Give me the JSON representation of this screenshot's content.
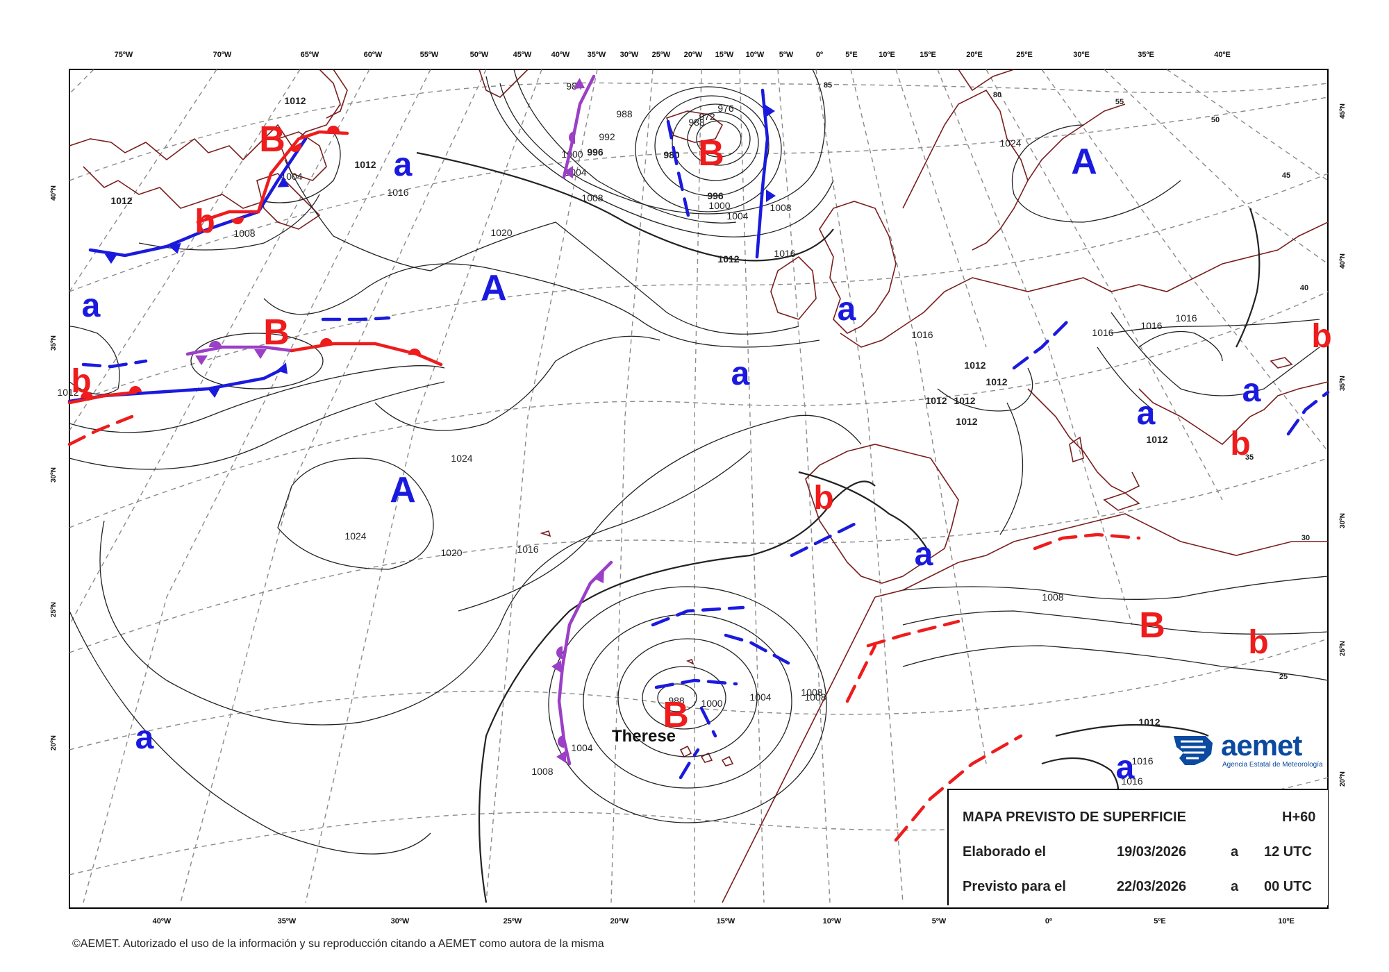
{
  "map": {
    "top_lon_labels": [
      "75ºW",
      "70ºW",
      "65ºW",
      "60ºW",
      "55ºW",
      "50ºW",
      "45ºW",
      "40ºW",
      "35ºW",
      "30ºW",
      "25ºW",
      "20ºW",
      "15ºW",
      "10ºW",
      "5ºW",
      "0º",
      "5ºE",
      "10ºE",
      "15ºE",
      "20ºE",
      "25ºE",
      "30ºE",
      "35ºE",
      "40ºE"
    ],
    "bottom_lon_labels": [
      "40ºW",
      "35ºW",
      "30ºW",
      "25ºW",
      "20ºW",
      "15ºW",
      "10ºW",
      "5ºW",
      "0º",
      "5ºE",
      "10ºE"
    ],
    "left_lat_labels": [
      "40ºN",
      "35ºN",
      "30ºN",
      "25ºN",
      "20ºN"
    ],
    "right_lat_labels": [
      "45ºN",
      "40ºN",
      "35ºN",
      "30ºN",
      "25ºN",
      "20ºN"
    ],
    "isobar_labels": [
      "1012",
      "1012",
      "1012",
      "1016",
      "1008",
      "1004",
      "1012",
      "1020",
      "1024",
      "1024",
      "1020",
      "1016",
      "984",
      "988",
      "992",
      "996",
      "1000",
      "1004",
      "1008",
      "980",
      "972",
      "976",
      "988",
      "996",
      "1000",
      "1004",
      "1008",
      "1012",
      "1016",
      "1024",
      "1016",
      "1016",
      "1016",
      "1016",
      "1012",
      "1012",
      "1012",
      "1012",
      "1012",
      "1012",
      "1008",
      "1008",
      "1004",
      "1000",
      "1004",
      "1008",
      "988",
      "1012",
      "1016",
      "1016",
      "1008"
    ],
    "in_map_lat_labels": [
      "85",
      "80",
      "55",
      "50",
      "45",
      "40",
      "35",
      "30",
      "25"
    ],
    "pressure_centers": [
      {
        "letter": "B",
        "color": "#ee1c1c"
      },
      {
        "letter": "B",
        "color": "#ee1c1c"
      },
      {
        "letter": "B",
        "color": "#ee1c1c"
      },
      {
        "letter": "B",
        "color": "#ee1c1c"
      },
      {
        "letter": "B",
        "color": "#ee1c1c"
      },
      {
        "letter": "b",
        "color": "#ee1c1c"
      },
      {
        "letter": "b",
        "color": "#ee1c1c"
      },
      {
        "letter": "b",
        "color": "#ee1c1c"
      },
      {
        "letter": "b",
        "color": "#ee1c1c"
      },
      {
        "letter": "b",
        "color": "#ee1c1c"
      },
      {
        "letter": "b",
        "color": "#ee1c1c"
      },
      {
        "letter": "A",
        "color": "#1a1adf"
      },
      {
        "letter": "A",
        "color": "#1a1adf"
      },
      {
        "letter": "A",
        "color": "#1a1adf"
      },
      {
        "letter": "a",
        "color": "#1a1adf"
      },
      {
        "letter": "a",
        "color": "#1a1adf"
      },
      {
        "letter": "a",
        "color": "#1a1adf"
      },
      {
        "letter": "a",
        "color": "#1a1adf"
      },
      {
        "letter": "a",
        "color": "#1a1adf"
      },
      {
        "letter": "a",
        "color": "#1a1adf"
      },
      {
        "letter": "a",
        "color": "#1a1adf"
      },
      {
        "letter": "a",
        "color": "#1a1adf"
      },
      {
        "letter": "a",
        "color": "#1a1adf"
      }
    ],
    "storm_name": "Therese",
    "colors": {
      "low": "#ee1c1c",
      "high": "#1a1adf",
      "cold_front": "#1a1adf",
      "warm_front": "#ee1c1c",
      "occluded_front": "#9b3fc6",
      "trough": "#ee1c1c",
      "coast": "#7a1e1e",
      "isobar": "#222222",
      "graticule": "#8a8a8a"
    }
  },
  "info": {
    "title": "MAPA PREVISTO DE SUPERFICIE",
    "horizon": "H+60",
    "elaborated_label": "Elaborado el",
    "elaborated_date": "19/03/2026",
    "a1": "a",
    "elaborated_time": "12 UTC",
    "forecast_label": "Previsto para el",
    "forecast_date": "22/03/2026",
    "a2": "a",
    "forecast_time": "00 UTC"
  },
  "logo": {
    "name": "aemet",
    "subtitle": "Agencia Estatal de Meteorología"
  },
  "copyright": "©AEMET. Autorizado el uso de la información y su reproducción citando a AEMET como autora de la misma"
}
